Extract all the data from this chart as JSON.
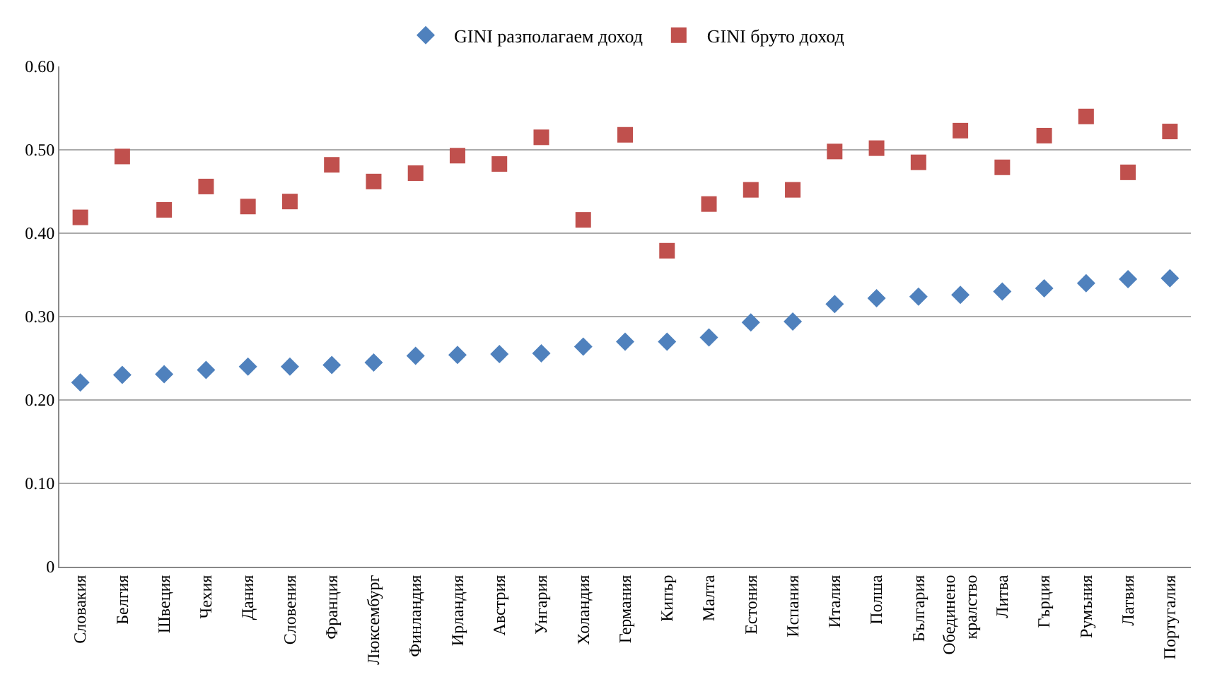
{
  "chart_data": {
    "type": "scatter",
    "categories": [
      "Словакия",
      "Белгия",
      "Швеция",
      "Чехия",
      "Дания",
      "Словения",
      "Франция",
      "Люксембург",
      "Финландия",
      "Ирландия",
      "Австрия",
      "Унгария",
      "Холандия",
      "Германия",
      "Кипър",
      "Малта",
      "Естония",
      "Испания",
      "Италия",
      "Полша",
      "България",
      "Обединено кралство",
      "Литва",
      "Гърция",
      "Румъния",
      "Латвия",
      "Португалия"
    ],
    "series": [
      {
        "name": "GINI разполагаем доход",
        "color": "#4f81bd",
        "marker": "diamond",
        "values": [
          0.221,
          0.23,
          0.231,
          0.236,
          0.24,
          0.24,
          0.242,
          0.245,
          0.253,
          0.254,
          0.255,
          0.256,
          0.264,
          0.27,
          0.27,
          0.275,
          0.293,
          0.294,
          0.315,
          0.322,
          0.324,
          0.326,
          0.33,
          0.334,
          0.34,
          0.345,
          0.346
        ]
      },
      {
        "name": "GINI бруто доход",
        "color": "#c0504d",
        "marker": "square",
        "values": [
          0.419,
          0.492,
          0.428,
          0.456,
          0.432,
          0.438,
          0.482,
          0.462,
          0.472,
          0.493,
          0.483,
          0.515,
          0.416,
          0.518,
          0.379,
          0.435,
          0.452,
          0.452,
          0.498,
          0.502,
          0.485,
          0.523,
          0.479,
          0.517,
          0.54,
          0.473,
          0.522
        ]
      }
    ],
    "ylim": [
      0,
      0.6
    ],
    "yticks": [
      0,
      {
        "value": 0.1,
        "label": "0.10"
      },
      {
        "value": 0.2,
        "label": "0.20"
      },
      {
        "value": 0.3,
        "label": "0.30"
      },
      {
        "value": 0.4,
        "label": "0.40"
      },
      {
        "value": 0.5,
        "label": "0.50"
      },
      {
        "value": 0.6,
        "label": "0.60"
      }
    ],
    "grid": "y",
    "legend": "top"
  }
}
